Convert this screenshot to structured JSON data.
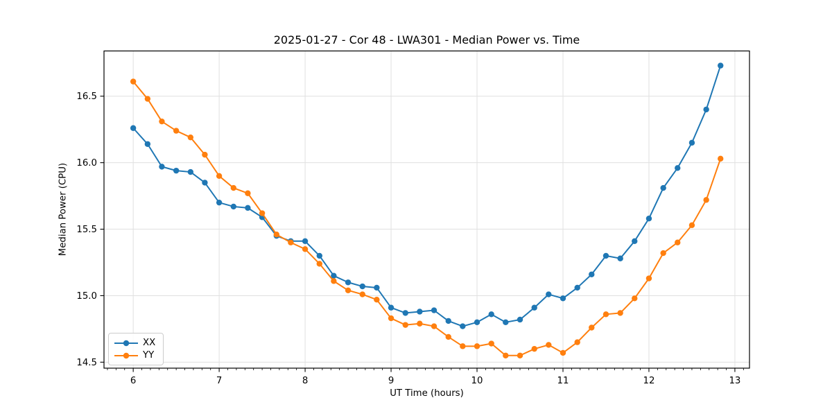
{
  "figure": {
    "title": "2025-01-27 - Cor 48 - LWA301 - Median Power vs. Time"
  },
  "chart_data": {
    "type": "line",
    "title": "2025-01-27 - Cor 48 - LWA301 - Median Power vs. Time",
    "xlabel": "UT Time (hours)",
    "ylabel": "Median Power (CPU)",
    "xlim": [
      5.66,
      13.17
    ],
    "ylim": [
      14.455,
      16.84
    ],
    "x_ticks": [
      6,
      7,
      8,
      9,
      10,
      11,
      12,
      13
    ],
    "x_tick_labels": [
      "6",
      "7",
      "8",
      "9",
      "10",
      "11",
      "12",
      "13"
    ],
    "x_minor_tick_step": 0.1,
    "y_ticks": [
      14.5,
      15.0,
      15.5,
      16.0,
      16.5
    ],
    "y_tick_labels": [
      "14.5",
      "15.0",
      "15.5",
      "16.0",
      "16.5"
    ],
    "grid": true,
    "grid_color": "#e0e0e0",
    "legend_position": "lower left",
    "marker": "circle",
    "x": [
      6.0,
      6.167,
      6.333,
      6.5,
      6.667,
      6.833,
      7.0,
      7.167,
      7.333,
      7.5,
      7.667,
      7.833,
      8.0,
      8.167,
      8.333,
      8.5,
      8.667,
      8.833,
      9.0,
      9.167,
      9.333,
      9.5,
      9.667,
      9.833,
      10.0,
      10.167,
      10.333,
      10.5,
      10.667,
      10.833,
      11.0,
      11.167,
      11.333,
      11.5,
      11.667,
      11.833,
      12.0,
      12.167,
      12.333,
      12.5,
      12.667,
      12.833
    ],
    "series": [
      {
        "name": "XX",
        "color": "#1f77b4",
        "values": [
          16.26,
          16.14,
          15.97,
          15.94,
          15.93,
          15.85,
          15.7,
          15.67,
          15.66,
          15.59,
          15.45,
          15.41,
          15.41,
          15.3,
          15.15,
          15.1,
          15.07,
          15.06,
          14.91,
          14.87,
          14.88,
          14.89,
          14.81,
          14.77,
          14.8,
          14.86,
          14.8,
          14.82,
          14.91,
          15.01,
          14.98,
          15.06,
          15.16,
          15.3,
          15.28,
          15.41,
          15.58,
          15.81,
          15.96,
          16.15,
          16.4,
          16.73
        ]
      },
      {
        "name": "YY",
        "color": "#ff7f0e",
        "values": [
          16.61,
          16.48,
          16.31,
          16.24,
          16.19,
          16.06,
          15.9,
          15.81,
          15.77,
          15.62,
          15.46,
          15.4,
          15.35,
          15.24,
          15.11,
          15.04,
          15.01,
          14.97,
          14.83,
          14.78,
          14.79,
          14.77,
          14.69,
          14.62,
          14.62,
          14.64,
          14.55,
          14.55,
          14.6,
          14.63,
          14.57,
          14.65,
          14.76,
          14.86,
          14.87,
          14.98,
          15.13,
          15.32,
          15.4,
          15.53,
          15.72,
          16.03
        ]
      }
    ]
  }
}
